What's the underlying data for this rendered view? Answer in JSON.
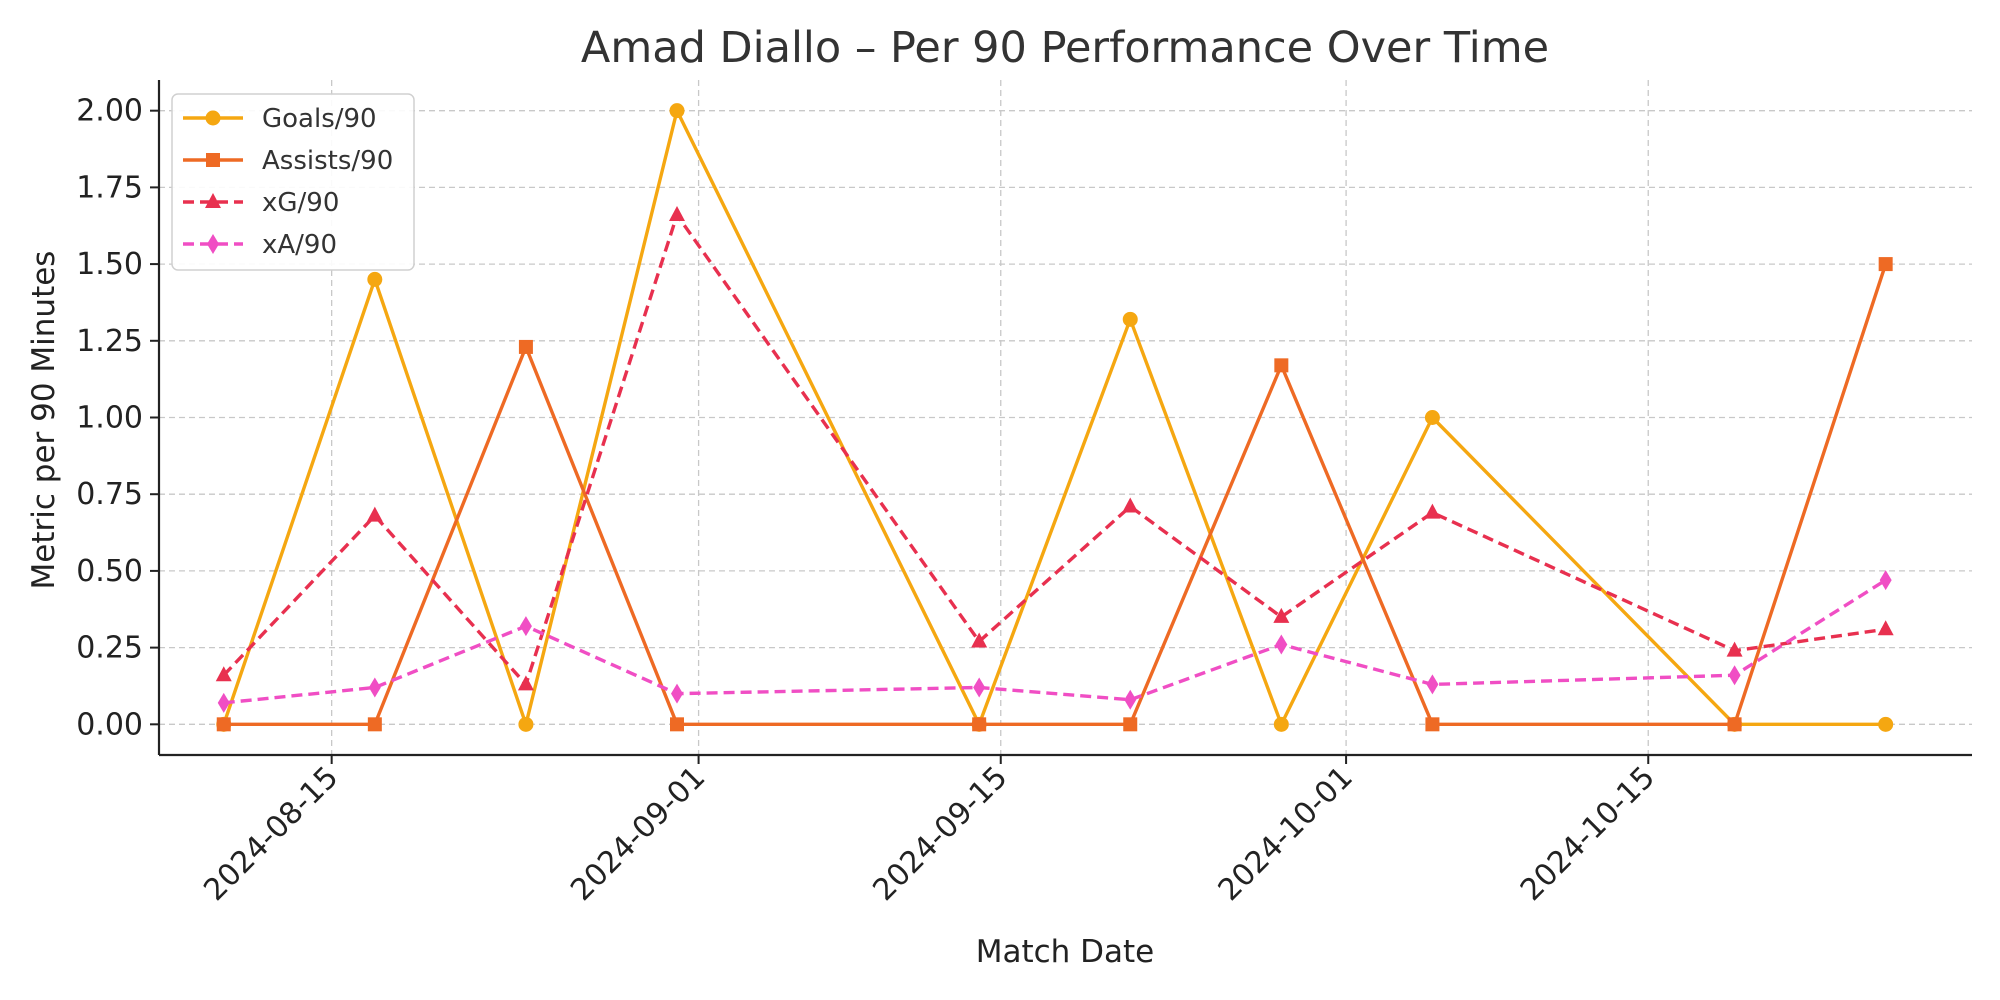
{
  "chart_data": {
    "type": "line",
    "title": "Amad Diallo – Per 90 Performance Over Time",
    "xlabel": "Match Date",
    "ylabel": "Metric per 90 Minutes",
    "x": [
      "2024-08-10",
      "2024-08-17",
      "2024-08-24",
      "2024-08-31",
      "2024-09-14",
      "2024-09-21",
      "2024-09-28",
      "2024-10-05",
      "2024-10-19",
      "2024-10-26"
    ],
    "x_ticks": [
      "2024-08-15",
      "2024-09-01",
      "2024-09-15",
      "2024-10-01",
      "2024-10-15"
    ],
    "xlim": [
      "2024-08-07",
      "2024-10-30"
    ],
    "y_ticks": [
      "0.00",
      "0.25",
      "0.50",
      "0.75",
      "1.00",
      "1.25",
      "1.50",
      "1.75",
      "2.00"
    ],
    "ylim": [
      -0.1,
      2.1
    ],
    "grid": true,
    "legend_position": "top-left",
    "series": [
      {
        "name": "Goals/90",
        "color": "#f5a711",
        "marker": "circle",
        "dashed": false,
        "values": [
          0,
          1.45,
          0,
          2.0,
          0,
          1.32,
          0,
          1.0,
          0,
          0
        ]
      },
      {
        "name": "Assists/90",
        "color": "#ee6a24",
        "marker": "square",
        "dashed": false,
        "values": [
          0,
          0,
          1.23,
          0,
          0,
          0,
          1.17,
          0,
          0,
          1.5
        ]
      },
      {
        "name": "xG/90",
        "color": "#e8304f",
        "marker": "triangle",
        "dashed": true,
        "values": [
          0.16,
          0.68,
          0.13,
          1.66,
          0.27,
          0.71,
          0.35,
          0.69,
          0.24,
          0.31
        ]
      },
      {
        "name": "xA/90",
        "color": "#f04ec4",
        "marker": "diamond",
        "dashed": true,
        "values": [
          0.07,
          0.12,
          0.32,
          0.1,
          0.12,
          0.08,
          0.26,
          0.13,
          0.16,
          0.47
        ]
      }
    ]
  }
}
